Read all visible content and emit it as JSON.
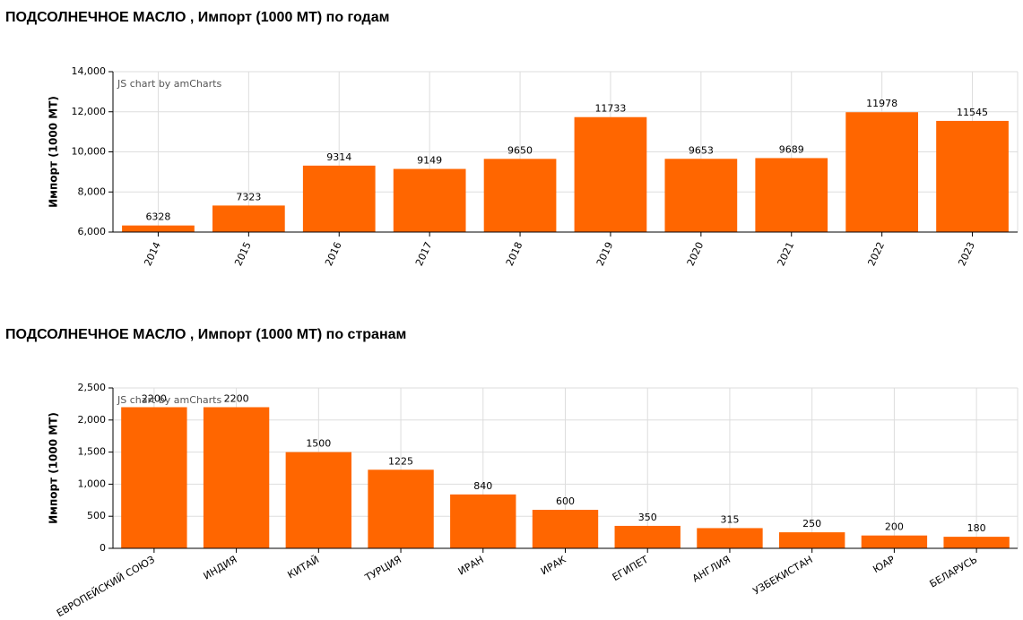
{
  "chart_data": [
    {
      "type": "bar",
      "title": "ПОДСОЛНЕЧНОЕ МАСЛО , Импорт (1000 МТ) по годам",
      "y_label": "Импорт (1000 МТ)",
      "credit": "JS chart by amCharts",
      "categories": [
        "2014",
        "2015",
        "2016",
        "2017",
        "2018",
        "2019",
        "2020",
        "2021",
        "2022",
        "2023"
      ],
      "values": [
        6328,
        7323,
        9314,
        9149,
        9650,
        11733,
        9653,
        9689,
        11978,
        11545
      ],
      "color": "#ff6600",
      "grid": true,
      "ylim": [
        6000,
        14000
      ],
      "yticks": [
        {
          "value": 6000,
          "label": "6,000"
        },
        {
          "value": 8000,
          "label": "8,000"
        },
        {
          "value": 10000,
          "label": "10,000"
        },
        {
          "value": 12000,
          "label": "12,000"
        },
        {
          "value": 14000,
          "label": "14,000"
        }
      ]
    },
    {
      "type": "bar",
      "title": "ПОДСОЛНЕЧНОЕ МАСЛО , Импорт (1000 МТ) по странам",
      "y_label": "Импорт (1000 МТ)",
      "credit": "JS chart by amCharts",
      "categories": [
        "ЕВРОПЕЙСКИЙ СОЮЗ",
        "ИНДИЯ",
        "КИТАЙ",
        "ТУРЦИЯ",
        "ИРАН",
        "ИРАК",
        "ЕГИПЕТ",
        "АНГЛИЯ",
        "УЗБЕКИСТАН",
        "ЮАР",
        "БЕЛАРУСЬ"
      ],
      "values": [
        2200,
        2200,
        1500,
        1225,
        840,
        600,
        350,
        315,
        250,
        200,
        180
      ],
      "color": "#ff6600",
      "grid": true,
      "ylim": [
        0,
        2500
      ],
      "yticks": [
        0,
        500,
        {
          "value": 1000,
          "label": "1,000"
        },
        {
          "value": 1500,
          "label": "1,500"
        },
        {
          "value": 2000,
          "label": "2,000"
        },
        {
          "value": 2500,
          "label": "2,500"
        }
      ]
    }
  ]
}
